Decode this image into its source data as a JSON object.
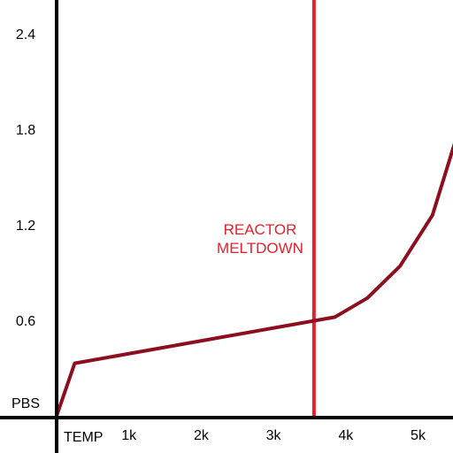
{
  "chart_data": {
    "type": "line",
    "title": "",
    "xlabel": "TEMP",
    "ylabel": "PBS",
    "xlim": [
      0,
      5200
    ],
    "ylim": [
      0,
      3.0
    ],
    "x_ticks": [
      {
        "value": 1000,
        "label": "1k"
      },
      {
        "value": 2000,
        "label": "2k"
      },
      {
        "value": 3000,
        "label": "3k"
      },
      {
        "value": 4000,
        "label": "4k"
      },
      {
        "value": 5000,
        "label": "5k"
      }
    ],
    "y_ticks": [
      {
        "value": 0.6,
        "label": "0.6"
      },
      {
        "value": 1.2,
        "label": "1.2"
      },
      {
        "value": 1.8,
        "label": "1.8"
      },
      {
        "value": 2.4,
        "label": "2.4"
      }
    ],
    "series": [
      {
        "color": "#8b0f1e",
        "x": [
          0,
          250,
          3850,
          4300,
          4750,
          5200,
          5580
        ],
        "y": [
          0.0,
          0.33,
          0.62,
          0.74,
          0.94,
          1.26,
          1.82
        ]
      }
    ],
    "annotations": [
      {
        "type": "vline",
        "x": 3560,
        "color": "#e5202a",
        "lines": [
          "REACTOR",
          "MELTDOWN"
        ]
      }
    ],
    "grid": false,
    "legend": "none"
  }
}
